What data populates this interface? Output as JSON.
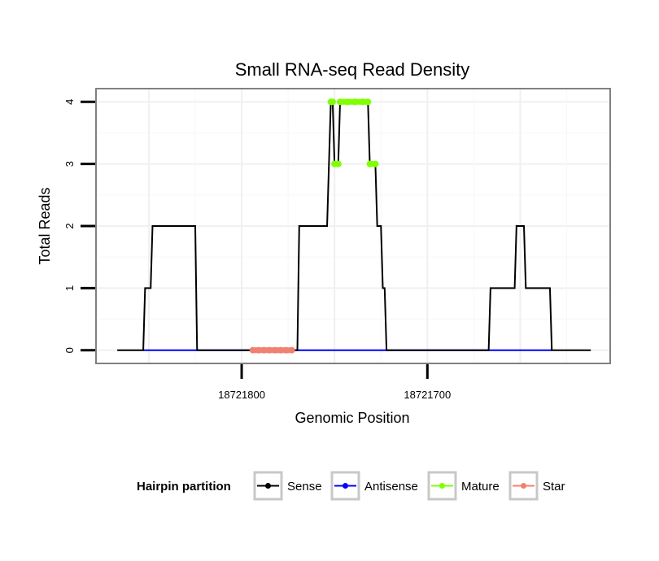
{
  "chart_data": {
    "type": "line",
    "title": "Small RNA-seq Read Density",
    "xlabel": "Genomic Position",
    "ylabel": "Total Reads",
    "x_reversed": true,
    "xlim": [
      18721878,
      18721602
    ],
    "ylim": [
      -0.2,
      4.2
    ],
    "x_ticks": [
      18721800,
      18721700
    ],
    "x_tick_labels": [
      "18721800",
      "18721700"
    ],
    "y_ticks": [
      0,
      1,
      2,
      3,
      4
    ],
    "y_tick_labels": [
      "0",
      "1",
      "2",
      "3",
      "4"
    ],
    "grid": true,
    "legend": {
      "title": "Hairpin partition",
      "placement": "bottom",
      "entries": [
        "Sense",
        "Antisense",
        "Mature",
        "Star"
      ]
    },
    "series": [
      {
        "name": "Sense",
        "color": "#000000",
        "points": [
          [
            18721867,
            0
          ],
          [
            18721853,
            0
          ],
          [
            18721852,
            1
          ],
          [
            18721849,
            1
          ],
          [
            18721848,
            2
          ],
          [
            18721825,
            2
          ],
          [
            18721824,
            0
          ],
          [
            18721770,
            0
          ],
          [
            18721769,
            2
          ],
          [
            18721754,
            2
          ],
          [
            18721753,
            3
          ],
          [
            18721752,
            4
          ],
          [
            18721751,
            4
          ],
          [
            18721750,
            3
          ],
          [
            18721748,
            3
          ],
          [
            18721747,
            4
          ],
          [
            18721732,
            4
          ],
          [
            18721731,
            3
          ],
          [
            18721728,
            3
          ],
          [
            18721727,
            2
          ],
          [
            18721725,
            2
          ],
          [
            18721724,
            1
          ],
          [
            18721723,
            1
          ],
          [
            18721722,
            0
          ],
          [
            18721667,
            0
          ],
          [
            18721666,
            1
          ],
          [
            18721653,
            1
          ],
          [
            18721652,
            2
          ],
          [
            18721648,
            2
          ],
          [
            18721647,
            1
          ],
          [
            18721634,
            1
          ],
          [
            18721633,
            0
          ],
          [
            18721612,
            0
          ]
        ]
      },
      {
        "name": "Antisense",
        "color": "#0000FF",
        "points": [
          [
            18721853,
            0
          ],
          [
            18721633,
            0
          ]
        ]
      },
      {
        "name": "Mature",
        "color": "#7FFF00",
        "points": [
          [
            18721752,
            4
          ],
          [
            18721751,
            4
          ],
          [
            18721750,
            3
          ],
          [
            18721748,
            3
          ],
          [
            18721747,
            4
          ],
          [
            18721743,
            4
          ],
          [
            18721739,
            4
          ],
          [
            18721735,
            4
          ],
          [
            18721732,
            4
          ],
          [
            18721731,
            3
          ],
          [
            18721728,
            3
          ]
        ],
        "segments": [
          [
            [
              18721752,
              4
            ],
            [
              18721751,
              4
            ]
          ],
          [
            [
              18721750,
              3
            ],
            [
              18721748,
              3
            ]
          ],
          [
            [
              18721747,
              4
            ],
            [
              18721732,
              4
            ]
          ],
          [
            [
              18721731,
              3
            ],
            [
              18721728,
              3
            ]
          ]
        ]
      },
      {
        "name": "Star",
        "color": "#F08070",
        "points": [
          [
            18721794,
            0
          ],
          [
            18721791,
            0
          ],
          [
            18721788,
            0
          ],
          [
            18721785,
            0
          ],
          [
            18721782,
            0
          ],
          [
            18721779,
            0
          ],
          [
            18721776,
            0
          ],
          [
            18721773,
            0
          ]
        ],
        "segments": [
          [
            [
              18721794,
              0
            ],
            [
              18721773,
              0
            ]
          ]
        ]
      }
    ]
  }
}
